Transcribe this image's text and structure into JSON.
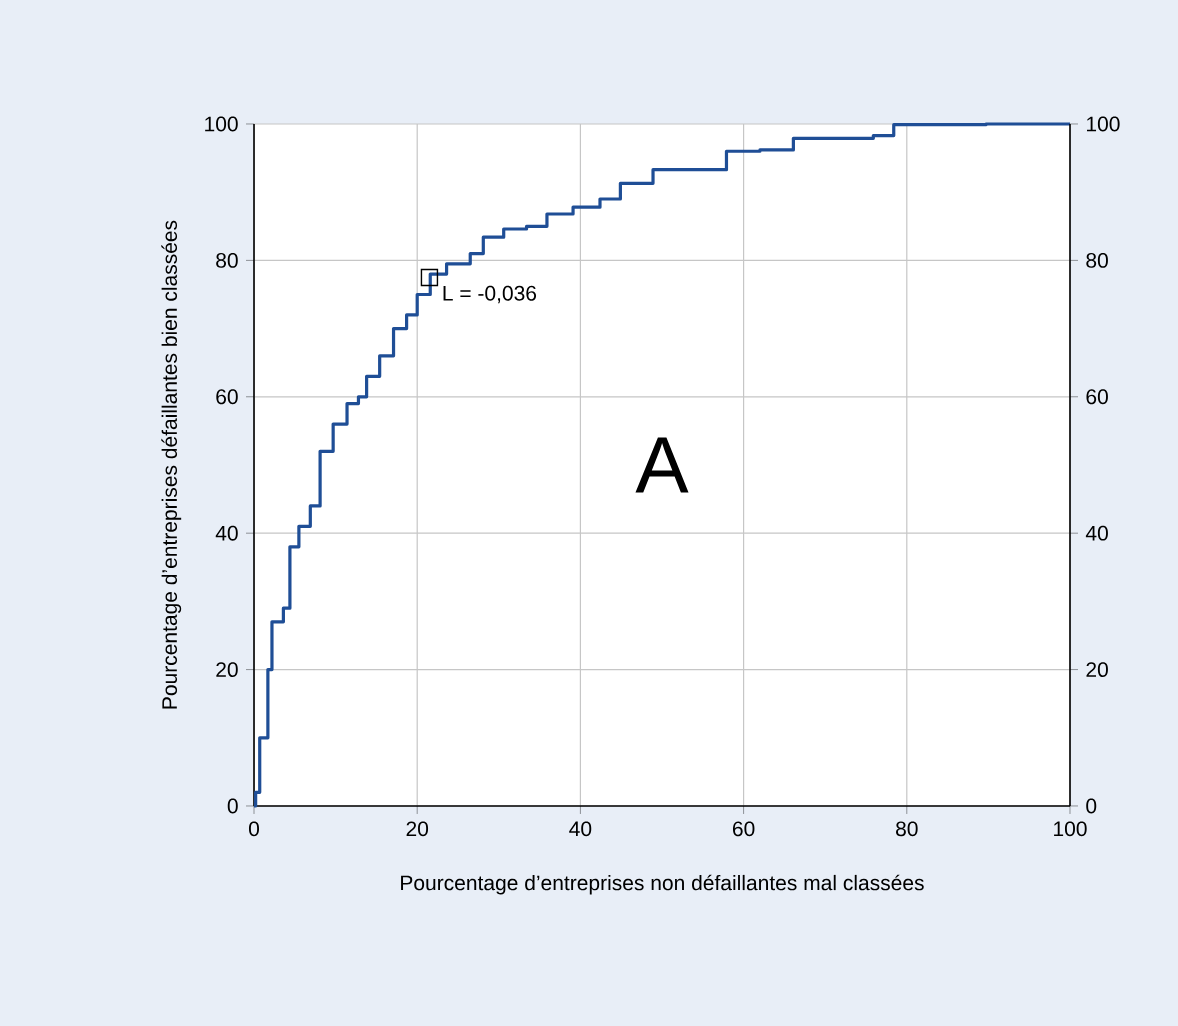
{
  "chart_data": {
    "type": "step",
    "xlabel": "Pourcentage d’entreprises non défaillantes mal classées",
    "ylabel": "Pourcentage d’entreprises défaillantes bien classées",
    "x": [
      0,
      0.2,
      0.7,
      1.7,
      2.2,
      3.6,
      4.4,
      5.5,
      6.9,
      8.1,
      9.7,
      11.4,
      12.8,
      13.8,
      15.4,
      17.1,
      18.7,
      20,
      21.6,
      23.6,
      26.5,
      28.1,
      30.6,
      33.4,
      35.9,
      39.1,
      42.4,
      44.9,
      48.9,
      55.1,
      57.9,
      62,
      66.1,
      75.9,
      78.4,
      89.7,
      100
    ],
    "series": [
      {
        "color": "#1f4e96",
        "values": [
          0,
          2,
          10,
          20,
          27,
          29,
          38,
          41,
          44,
          52,
          56,
          59,
          60,
          63,
          66,
          70,
          72,
          75,
          78,
          79.5,
          81,
          83.4,
          84.6,
          85,
          86.8,
          87.8,
          89,
          91.3,
          93.3,
          93.3,
          96,
          96.2,
          97.9,
          98.3,
          99.9,
          100,
          100
        ]
      }
    ],
    "xlim": [
      0,
      100
    ],
    "ylim": [
      0,
      100
    ],
    "y2lim": [
      0,
      100
    ],
    "xticks": [
      0,
      20,
      40,
      60,
      80,
      100
    ],
    "yticks": [
      0,
      20,
      40,
      60,
      80,
      100
    ],
    "y2ticks": [
      0,
      20,
      40,
      60,
      80,
      100
    ],
    "grid": true,
    "line_style": "solid",
    "marker": "none",
    "annotations": [
      {
        "text": "L = -0,036",
        "x": 21.5,
        "y": 77.5
      },
      "A"
    ]
  }
}
